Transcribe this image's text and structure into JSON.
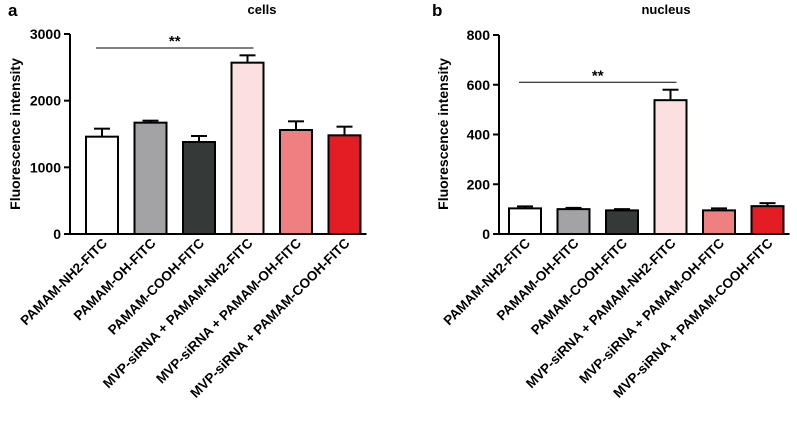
{
  "chart_data": [
    {
      "type": "bar",
      "panel_label": "a",
      "title": "cells",
      "ylabel": "Fluorescence intensity",
      "xlabel": "",
      "ylim": [
        0,
        3000
      ],
      "yticks": [
        0,
        1000,
        2000,
        3000
      ],
      "ytick_labels": [
        "0",
        "1000",
        "2000",
        "3000"
      ],
      "categories": [
        "PAMAM-NH2-FITC",
        "PAMAM-OH-FITC",
        "PAMAM-COOH-FITC",
        "MVP-siRNA + PAMAM-NH2-FITC",
        "MVP-siRNA + PAMAM-OH-FITC",
        "MVP-siRNA + PAMAM-COOH-FITC"
      ],
      "values": [
        1460,
        1670,
        1380,
        2570,
        1560,
        1480
      ],
      "errors": [
        120,
        30,
        90,
        110,
        130,
        130
      ],
      "colors": [
        "#ffffff",
        "#a3a3a6",
        "#353a38",
        "#fbdfe1",
        "#ef8082",
        "#e41c23"
      ],
      "significance": {
        "from": 0,
        "to": 3,
        "label": "**",
        "y": 2790
      }
    },
    {
      "type": "bar",
      "panel_label": "b",
      "title": "nucleus",
      "ylabel": "Fluorescence intensity",
      "xlabel": "",
      "ylim": [
        0,
        800
      ],
      "yticks": [
        0,
        200,
        400,
        600,
        800
      ],
      "ytick_labels": [
        "0",
        "200",
        "400",
        "600",
        "800"
      ],
      "categories": [
        "PAMAM-NH2-FITC",
        "PAMAM-OH-FITC",
        "PAMAM-COOH-FITC",
        "MVP-siRNA + PAMAM-NH2-FITC",
        "MVP-siRNA + PAMAM-OH-FITC",
        "MVP-siRNA + PAMAM-COOH-FITC"
      ],
      "values": [
        103,
        100,
        95,
        538,
        95,
        112
      ],
      "errors": [
        8,
        5,
        5,
        42,
        8,
        12
      ],
      "colors": [
        "#ffffff",
        "#a3a3a6",
        "#353a38",
        "#fbdfe1",
        "#ef8082",
        "#e41c23"
      ],
      "significance": {
        "from": 0,
        "to": 3,
        "label": "**",
        "y": 610
      }
    }
  ]
}
